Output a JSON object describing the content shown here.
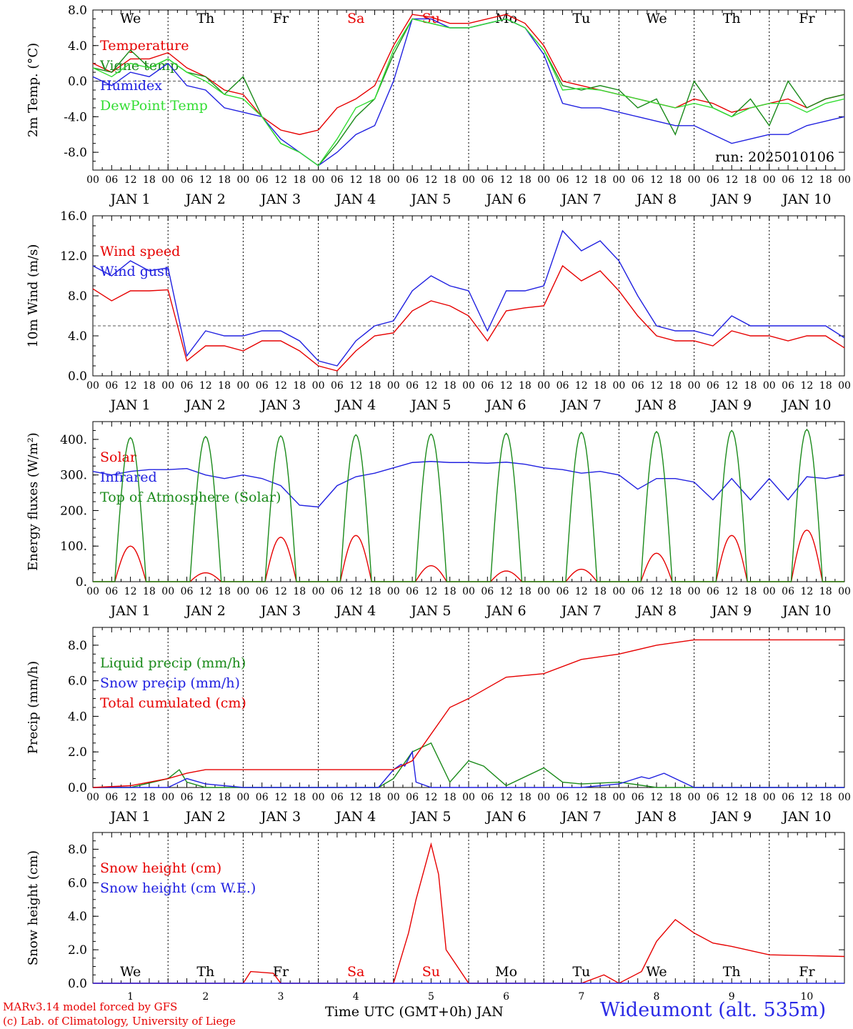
{
  "footer": {
    "credit_line1": "MARv3.14 model forced by GFS",
    "credit_line2": "(c) Lab. of Climatology, University of Liege",
    "xlabel": "Time UTC (GMT+0h) JAN",
    "station": "Wideumont (alt. 535m)"
  },
  "colors": {
    "red": "#e60000",
    "green": "#1a8a1a",
    "blue": "#2020e0",
    "lightgreen": "#33dd33",
    "weekend": "#e60000"
  },
  "days": {
    "weekday_labels": [
      "We",
      "Th",
      "Fr",
      "Sa",
      "Su",
      "Mo",
      "Tu",
      "We",
      "Th",
      "Fr"
    ],
    "weekend_index": [
      3,
      4
    ],
    "date_labels": [
      "JAN 1",
      "JAN 2",
      "JAN 3",
      "JAN 4",
      "JAN 5",
      "JAN 6",
      "JAN 7",
      "JAN 8",
      "JAN 9",
      "JAN 10"
    ],
    "day_numbers": [
      "1",
      "2",
      "3",
      "4",
      "5",
      "6",
      "7",
      "8",
      "9",
      "10"
    ],
    "hour_ticks": [
      "00",
      "06",
      "12",
      "18"
    ],
    "final_tick": "00"
  },
  "chart_data": [
    {
      "type": "line",
      "ylabel": "2m Temp. (°C)",
      "ylim": [
        -10,
        8
      ],
      "yticks": [
        "-8.0",
        "-4.0",
        "0.0",
        "4.0",
        "8.0"
      ],
      "ytick_values": [
        -8,
        -4,
        0,
        4,
        8
      ],
      "reference_line": 0,
      "annotation": "run: 2025010106",
      "x_unit": "days since JAN 1 00 UTC",
      "series": [
        {
          "name": "Temperature",
          "color": "red",
          "x": [
            0,
            0.25,
            0.5,
            0.75,
            1,
            1.25,
            1.5,
            1.75,
            2,
            2.25,
            2.5,
            2.75,
            3,
            3.25,
            3.5,
            3.75,
            4,
            4.25,
            4.5,
            4.75,
            5,
            5.25,
            5.5,
            5.75,
            6,
            6.25,
            6.5,
            6.75,
            7,
            7.25,
            7.5,
            7.75,
            8,
            8.25,
            8.5,
            8.75,
            9,
            9.25,
            9.5,
            9.75,
            10
          ],
          "y": [
            2,
            1,
            2.5,
            2.5,
            3.2,
            1.5,
            0.5,
            -1,
            -1.5,
            -4,
            -5.5,
            -6,
            -5.5,
            -3,
            -2,
            -0.5,
            4,
            7.5,
            7.2,
            6.5,
            6.5,
            7,
            7.5,
            6.5,
            4,
            0,
            -0.5,
            -1,
            -1.5,
            -2,
            -2.5,
            -3,
            -2,
            -2.5,
            -3.5,
            -3,
            -2.5,
            -2,
            -3,
            -2,
            -1.5
          ]
        },
        {
          "name": "Vigne temp",
          "color": "green",
          "x": [
            0,
            0.25,
            0.5,
            0.75,
            1,
            1.25,
            1.5,
            1.75,
            2,
            2.25,
            2.5,
            2.75,
            3,
            3.25,
            3.5,
            3.75,
            4,
            4.25,
            4.5,
            4.75,
            5,
            5.25,
            5.5,
            5.75,
            6,
            6.25,
            6.5,
            6.75,
            7,
            7.25,
            7.5,
            7.75,
            8,
            8.25,
            8.5,
            8.75,
            9,
            9.25,
            9.5,
            9.75,
            10
          ],
          "y": [
            1.5,
            1,
            3.5,
            1.5,
            2.5,
            1,
            0.5,
            -1.5,
            0.5,
            -4,
            -7,
            -8,
            -9.5,
            -7,
            -4,
            -2,
            3,
            7,
            6.5,
            6,
            6,
            6.5,
            7,
            6,
            3.5,
            -0.5,
            -1,
            -0.5,
            -1,
            -3,
            -2,
            -6,
            0,
            -3,
            -4,
            -2,
            -5,
            0,
            -3,
            -2,
            -1.5
          ]
        },
        {
          "name": "Humidex",
          "color": "blue",
          "x": [
            0,
            0.25,
            0.5,
            0.75,
            1,
            1.25,
            1.5,
            1.75,
            2,
            2.25,
            2.5,
            2.75,
            3,
            3.25,
            3.5,
            3.75,
            4,
            4.25,
            4.5,
            4.75,
            5,
            5.25,
            5.5,
            5.75,
            6,
            6.25,
            6.5,
            6.75,
            7,
            7.25,
            7.5,
            7.75,
            8,
            8.25,
            8.5,
            8.75,
            9,
            9.25,
            9.5,
            9.75,
            10
          ],
          "y": [
            0.5,
            -0.5,
            1,
            0.5,
            2,
            -0.5,
            -1,
            -3,
            -3.5,
            -4,
            -6.5,
            -8,
            -9.5,
            -8,
            -6,
            -5,
            0,
            7,
            7,
            6,
            6,
            6.5,
            7,
            6,
            3,
            -2.5,
            -3,
            -3,
            -3.5,
            -4,
            -4.5,
            -5,
            -5,
            -6,
            -7,
            -6.5,
            -6,
            -6,
            -5,
            -4.5,
            -4
          ]
        },
        {
          "name": "DewPoint Temp",
          "color": "lightgreen",
          "x": [
            0,
            0.25,
            0.5,
            0.75,
            1,
            1.25,
            1.5,
            1.75,
            2,
            2.25,
            2.5,
            2.75,
            3,
            3.25,
            3.5,
            3.75,
            4,
            4.25,
            4.5,
            4.75,
            5,
            5.25,
            5.5,
            5.75,
            6,
            6.25,
            6.5,
            6.75,
            7,
            7.25,
            7.5,
            7.75,
            8,
            8.25,
            8.5,
            8.75,
            9,
            9.25,
            9.5,
            9.75,
            10
          ],
          "y": [
            1.5,
            0.5,
            2,
            1.5,
            2.5,
            1,
            0,
            -1.5,
            -2,
            -4,
            -7,
            -8,
            -9.5,
            -6.5,
            -3,
            -2,
            3.5,
            7,
            6.5,
            6,
            6,
            6.5,
            7,
            6,
            3.5,
            -1,
            -0.8,
            -1,
            -1.5,
            -2,
            -2.5,
            -3,
            -2.5,
            -3,
            -4,
            -3,
            -2.5,
            -2.5,
            -3.5,
            -2.5,
            -2
          ]
        }
      ]
    },
    {
      "type": "line",
      "ylabel": "10m Wind (m/s)",
      "ylim": [
        0,
        16
      ],
      "yticks": [
        "0.0",
        "4.0",
        "8.0",
        "12.0",
        "16.0"
      ],
      "ytick_values": [
        0,
        4,
        8,
        12,
        16
      ],
      "reference_line": 5,
      "x_unit": "days since JAN 1 00 UTC",
      "series": [
        {
          "name": "Wind speed",
          "color": "red",
          "x": [
            0,
            0.25,
            0.5,
            0.75,
            1,
            1.25,
            1.5,
            1.75,
            2,
            2.25,
            2.5,
            2.75,
            3,
            3.25,
            3.5,
            3.75,
            4,
            4.25,
            4.5,
            4.75,
            5,
            5.25,
            5.5,
            5.75,
            6,
            6.25,
            6.5,
            6.75,
            7,
            7.25,
            7.5,
            7.75,
            8,
            8.25,
            8.5,
            8.75,
            9,
            9.25,
            9.5,
            9.75,
            10
          ],
          "y": [
            8.7,
            7.5,
            8.5,
            8.5,
            8.6,
            1.5,
            3,
            3,
            2.5,
            3.5,
            3.5,
            2.5,
            1,
            0.5,
            2.5,
            4,
            4.3,
            6.5,
            7.5,
            7,
            6,
            3.5,
            6.5,
            6.8,
            7,
            11,
            9.5,
            10.5,
            8.5,
            6,
            4,
            3.5,
            3.5,
            3,
            4.5,
            4,
            4,
            3.5,
            4,
            4,
            2.8
          ]
        },
        {
          "name": "Wind gust",
          "color": "blue",
          "x": [
            0,
            0.25,
            0.5,
            0.75,
            1,
            1.25,
            1.5,
            1.75,
            2,
            2.25,
            2.5,
            2.75,
            3,
            3.25,
            3.5,
            3.75,
            4,
            4.25,
            4.5,
            4.75,
            5,
            5.25,
            5.5,
            5.75,
            6,
            6.25,
            6.5,
            6.75,
            7,
            7.25,
            7.5,
            7.75,
            8,
            8.25,
            8.5,
            8.75,
            9,
            9.25,
            9.5,
            9.75,
            10
          ],
          "y": [
            11,
            10,
            11.5,
            10.5,
            10.8,
            2,
            4.5,
            4,
            4,
            4.5,
            4.5,
            3.5,
            1.5,
            1,
            3.5,
            5,
            5.5,
            8.5,
            10,
            9,
            8.5,
            4.5,
            8.5,
            8.5,
            9,
            14.5,
            12.5,
            13.5,
            11.5,
            8,
            5,
            4.5,
            4.5,
            4,
            6,
            5,
            5,
            5,
            5,
            5,
            3.8
          ]
        }
      ]
    },
    {
      "type": "line",
      "ylabel": "Energy fluxes (W/m²)",
      "ylim": [
        0,
        450
      ],
      "yticks": [
        "0.",
        "100.",
        "200.",
        "300.",
        "400."
      ],
      "ytick_values": [
        0,
        100,
        200,
        300,
        400
      ],
      "x_unit": "days since JAN 1 00 UTC",
      "diurnal_peaks_note": "daily curves peak near 12 UTC",
      "series": [
        {
          "name": "Solar",
          "color": "red",
          "daily_peak": [
            100,
            25,
            125,
            130,
            45,
            30,
            35,
            80,
            130,
            145
          ]
        },
        {
          "name": "Infrared",
          "color": "blue",
          "x": [
            0,
            0.25,
            0.5,
            0.75,
            1,
            1.25,
            1.5,
            1.75,
            2,
            2.25,
            2.5,
            2.75,
            3,
            3.25,
            3.5,
            3.75,
            4,
            4.25,
            4.5,
            4.75,
            5,
            5.25,
            5.5,
            5.75,
            6,
            6.25,
            6.5,
            6.75,
            7,
            7.25,
            7.5,
            7.75,
            8,
            8.25,
            8.5,
            8.75,
            9,
            9.25,
            9.5,
            9.75,
            10
          ],
          "y": [
            310,
            300,
            310,
            315,
            315,
            318,
            300,
            290,
            300,
            290,
            270,
            215,
            210,
            270,
            295,
            305,
            320,
            335,
            338,
            335,
            335,
            333,
            336,
            330,
            320,
            315,
            305,
            310,
            300,
            260,
            290,
            290,
            280,
            230,
            290,
            230,
            290,
            230,
            295,
            290,
            300
          ]
        },
        {
          "name": "Top of Atmosphere (Solar)",
          "color": "green",
          "daily_peak": [
            405,
            408,
            410,
            413,
            415,
            417,
            420,
            422,
            425,
            428
          ]
        }
      ]
    },
    {
      "type": "line",
      "ylabel": "Precip (mm/h)",
      "ylim": [
        0,
        9
      ],
      "yticks": [
        "0.0",
        "2.0",
        "4.0",
        "6.0",
        "8.0"
      ],
      "ytick_values": [
        0,
        2,
        4,
        6,
        8
      ],
      "x_unit": "days since JAN 1 00 UTC",
      "series": [
        {
          "name": "Liquid precip (mm/h)",
          "color": "green",
          "x": [
            0,
            0.5,
            1,
            1.15,
            1.25,
            1.5,
            2,
            3,
            3.8,
            4,
            4.25,
            4.5,
            4.75,
            5,
            5.2,
            5.5,
            6,
            6.25,
            6.5,
            7,
            7.5,
            8,
            9,
            10
          ],
          "y": [
            0,
            0,
            0.5,
            1,
            0.3,
            0,
            0,
            0,
            0,
            0.5,
            2,
            2.5,
            0.3,
            1.5,
            1.2,
            0.1,
            1.1,
            0.3,
            0.2,
            0.3,
            0,
            0,
            0,
            0
          ]
        },
        {
          "name": "Snow precip (mm/h)",
          "color": "blue",
          "x": [
            0,
            1,
            1.25,
            1.5,
            2,
            3,
            3.8,
            4,
            4.1,
            4.15,
            4.25,
            4.3,
            4.5,
            5,
            6,
            6.5,
            7,
            7.3,
            7.4,
            7.6,
            8,
            9,
            10
          ],
          "y": [
            0,
            0,
            0.5,
            0.2,
            0,
            0,
            0,
            1,
            1.3,
            1.2,
            2,
            0.3,
            0,
            0,
            0,
            0,
            0.2,
            0.6,
            0.5,
            0.8,
            0,
            0,
            0
          ]
        },
        {
          "name": "Total cumulated (cm)",
          "color": "red",
          "x": [
            0,
            0.5,
            1,
            1.25,
            1.5,
            2,
            3,
            4,
            4.25,
            4.5,
            4.75,
            5,
            5.5,
            6,
            6.5,
            7,
            7.5,
            8,
            9,
            10
          ],
          "y": [
            0,
            0.1,
            0.5,
            0.8,
            1,
            1,
            1,
            1,
            1.5,
            3,
            4.5,
            5,
            6.2,
            6.4,
            7.2,
            7.5,
            8,
            8.3,
            8.3,
            8.3
          ]
        }
      ]
    },
    {
      "type": "line",
      "ylabel": "Snow height (cm)",
      "ylim": [
        0,
        9
      ],
      "yticks": [
        "0.0",
        "2.0",
        "4.0",
        "6.0",
        "8.0"
      ],
      "ytick_values": [
        0,
        2,
        4,
        6,
        8
      ],
      "x_unit": "days since JAN 1 00 UTC",
      "bottom_day_numbers": true,
      "series": [
        {
          "name": "Snow height (cm)",
          "color": "red",
          "x": [
            0,
            2,
            2.1,
            2.4,
            2.5,
            4,
            4.1,
            4.2,
            4.3,
            4.5,
            4.6,
            4.7,
            5,
            6,
            6.5,
            6.8,
            7,
            7.3,
            7.5,
            7.75,
            8,
            8.25,
            8.5,
            9,
            10
          ],
          "y": [
            0,
            0,
            0.7,
            0.6,
            0,
            0,
            1.5,
            3,
            5,
            8.3,
            6.5,
            2,
            0,
            0,
            0,
            0.5,
            0,
            0.7,
            2.5,
            3.8,
            3,
            2.4,
            2.2,
            1.7,
            1.6
          ]
        },
        {
          "name": "Snow height (cm W.E.)",
          "color": "blue",
          "x": [
            0,
            10
          ],
          "y": [
            0,
            0
          ]
        }
      ]
    }
  ]
}
